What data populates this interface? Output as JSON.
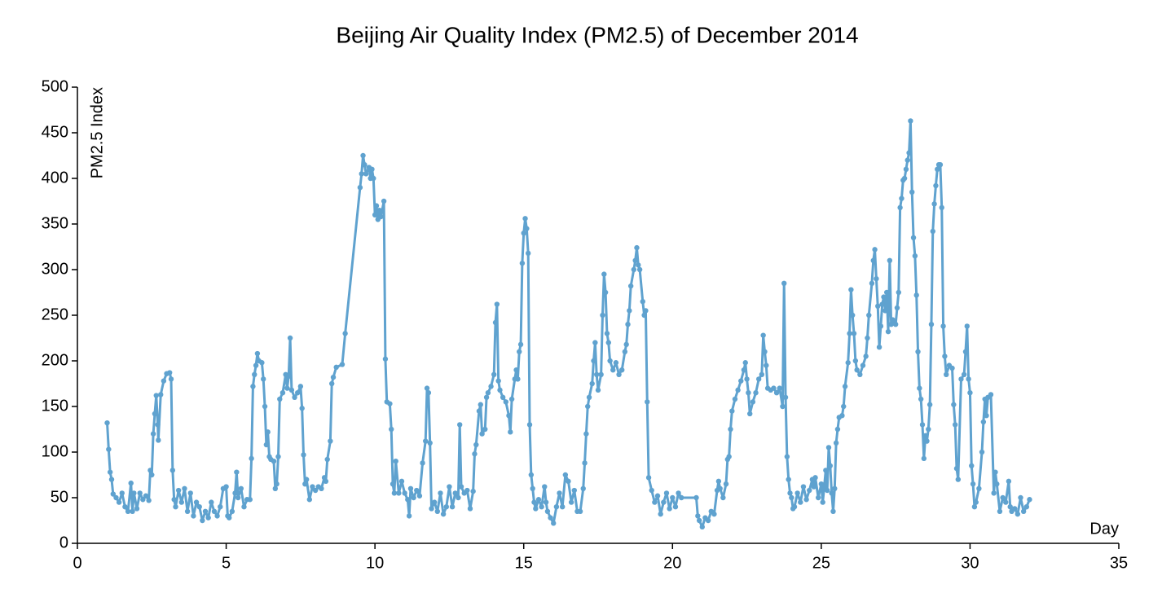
{
  "chart_data": {
    "type": "line",
    "title": "Beijing Air Quality Index (PM2.5) of December 2014",
    "x_label": "Day",
    "y_label": "PM2.5 Index",
    "color": "#5fa2cf",
    "xlim": [
      0,
      35
    ],
    "xticks": [
      0,
      5,
      10,
      15,
      20,
      25,
      30,
      35
    ],
    "ylim": [
      0,
      500
    ],
    "yticks": [
      0,
      50,
      100,
      150,
      200,
      250,
      300,
      350,
      400,
      450,
      500
    ],
    "grid": false,
    "x": [
      1.0,
      1.05,
      1.1,
      1.15,
      1.2,
      1.3,
      1.4,
      1.5,
      1.6,
      1.7,
      1.8,
      1.85,
      1.9,
      2.0,
      2.1,
      2.2,
      2.3,
      2.4,
      2.45,
      2.5,
      2.55,
      2.6,
      2.65,
      2.7,
      2.72,
      2.8,
      2.9,
      3.0,
      3.1,
      3.15,
      3.2,
      3.25,
      3.3,
      3.4,
      3.5,
      3.6,
      3.7,
      3.8,
      3.9,
      4.0,
      4.1,
      4.2,
      4.3,
      4.4,
      4.5,
      4.6,
      4.7,
      4.8,
      4.9,
      5.0,
      5.05,
      5.1,
      5.2,
      5.3,
      5.35,
      5.4,
      5.5,
      5.6,
      5.7,
      5.8,
      5.85,
      5.9,
      5.95,
      6.0,
      6.05,
      6.1,
      6.2,
      6.25,
      6.3,
      6.35,
      6.4,
      6.45,
      6.5,
      6.6,
      6.65,
      6.7,
      6.75,
      6.8,
      6.9,
      7.0,
      7.05,
      7.1,
      7.15,
      7.2,
      7.3,
      7.4,
      7.5,
      7.55,
      7.6,
      7.65,
      7.7,
      7.8,
      7.9,
      8.0,
      8.1,
      8.2,
      8.3,
      8.35,
      8.4,
      8.5,
      8.55,
      8.6,
      8.7,
      8.9,
      9.0,
      9.5,
      9.55,
      9.6,
      9.65,
      9.7,
      9.8,
      9.85,
      9.9,
      9.95,
      10.0,
      10.05,
      10.1,
      10.15,
      10.2,
      10.3,
      10.35,
      10.4,
      10.5,
      10.55,
      10.6,
      10.65,
      10.7,
      10.8,
      10.9,
      11.0,
      11.1,
      11.15,
      11.2,
      11.3,
      11.4,
      11.5,
      11.6,
      11.7,
      11.75,
      11.8,
      11.85,
      11.9,
      12.0,
      12.1,
      12.2,
      12.3,
      12.4,
      12.5,
      12.6,
      12.7,
      12.8,
      12.85,
      12.9,
      13.0,
      13.1,
      13.2,
      13.3,
      13.35,
      13.4,
      13.5,
      13.55,
      13.6,
      13.7,
      13.75,
      13.8,
      13.9,
      14.0,
      14.05,
      14.1,
      14.15,
      14.2,
      14.3,
      14.4,
      14.5,
      14.55,
      14.6,
      14.7,
      14.75,
      14.8,
      14.85,
      14.9,
      14.95,
      15.0,
      15.05,
      15.1,
      15.15,
      15.2,
      15.25,
      15.3,
      15.35,
      15.4,
      15.5,
      15.6,
      15.7,
      15.75,
      15.8,
      15.9,
      16.0,
      16.1,
      16.2,
      16.3,
      16.4,
      16.5,
      16.6,
      16.7,
      16.8,
      16.9,
      17.0,
      17.05,
      17.1,
      17.15,
      17.2,
      17.3,
      17.35,
      17.4,
      17.45,
      17.5,
      17.6,
      17.65,
      17.7,
      17.75,
      17.8,
      17.85,
      17.9,
      18.0,
      18.1,
      18.2,
      18.3,
      18.4,
      18.45,
      18.5,
      18.55,
      18.6,
      18.7,
      18.75,
      18.8,
      18.85,
      18.9,
      19.0,
      19.05,
      19.1,
      19.15,
      19.2,
      19.3,
      19.4,
      19.5,
      19.6,
      19.7,
      19.8,
      19.9,
      20.0,
      20.1,
      20.2,
      20.3,
      20.8,
      20.85,
      20.9,
      21.0,
      21.1,
      21.2,
      21.3,
      21.4,
      21.5,
      21.55,
      21.6,
      21.7,
      21.8,
      21.85,
      21.9,
      21.95,
      22.0,
      22.1,
      22.2,
      22.3,
      22.4,
      22.45,
      22.5,
      22.55,
      22.6,
      22.7,
      22.8,
      22.9,
      23.0,
      23.05,
      23.1,
      23.15,
      23.2,
      23.3,
      23.4,
      23.5,
      23.6,
      23.7,
      23.75,
      23.8,
      23.85,
      23.9,
      23.95,
      24.0,
      24.05,
      24.1,
      24.2,
      24.3,
      24.4,
      24.5,
      24.6,
      24.7,
      24.75,
      24.8,
      24.9,
      25.0,
      25.05,
      25.1,
      25.15,
      25.2,
      25.25,
      25.3,
      25.35,
      25.4,
      25.45,
      25.5,
      25.55,
      25.6,
      25.7,
      25.75,
      25.8,
      25.9,
      25.95,
      26.0,
      26.05,
      26.1,
      26.15,
      26.2,
      26.3,
      26.4,
      26.5,
      26.55,
      26.6,
      26.7,
      26.75,
      26.8,
      26.85,
      26.9,
      26.95,
      27.0,
      27.05,
      27.1,
      27.15,
      27.2,
      27.25,
      27.3,
      27.35,
      27.4,
      27.5,
      27.55,
      27.6,
      27.65,
      27.7,
      27.75,
      27.8,
      27.85,
      27.9,
      27.95,
      28.0,
      28.05,
      28.1,
      28.15,
      28.2,
      28.25,
      28.3,
      28.35,
      28.4,
      28.45,
      28.5,
      28.55,
      28.6,
      28.65,
      28.7,
      28.75,
      28.8,
      28.85,
      28.9,
      28.95,
      29.0,
      29.05,
      29.1,
      29.15,
      29.2,
      29.3,
      29.4,
      29.45,
      29.5,
      29.55,
      29.6,
      29.7,
      29.8,
      29.85,
      29.9,
      29.95,
      30.0,
      30.05,
      30.1,
      30.15,
      30.2,
      30.3,
      30.4,
      30.45,
      30.5,
      30.55,
      30.6,
      30.7,
      30.8,
      30.85,
      30.9,
      31.0,
      31.1,
      31.2,
      31.3,
      31.35,
      31.4,
      31.5,
      31.6,
      31.7,
      31.8,
      31.9,
      32.0
    ],
    "values": [
      132,
      103,
      78,
      70,
      54,
      50,
      45,
      55,
      40,
      35,
      66,
      35,
      55,
      38,
      55,
      48,
      52,
      47,
      80,
      75,
      120,
      142,
      162,
      130,
      113,
      163,
      178,
      186,
      187,
      180,
      80,
      48,
      40,
      58,
      45,
      60,
      35,
      55,
      30,
      45,
      40,
      25,
      35,
      28,
      45,
      35,
      30,
      40,
      60,
      62,
      30,
      28,
      35,
      55,
      78,
      50,
      60,
      40,
      48,
      48,
      93,
      172,
      185,
      195,
      208,
      200,
      198,
      180,
      150,
      108,
      122,
      95,
      92,
      90,
      60,
      65,
      95,
      158,
      165,
      185,
      170,
      183,
      225,
      168,
      160,
      165,
      172,
      148,
      97,
      65,
      70,
      48,
      62,
      58,
      62,
      60,
      72,
      68,
      92,
      112,
      175,
      182,
      193,
      196,
      230,
      390,
      405,
      425,
      415,
      405,
      412,
      400,
      410,
      400,
      360,
      370,
      355,
      365,
      358,
      375,
      202,
      155,
      153,
      125,
      65,
      55,
      90,
      55,
      68,
      55,
      48,
      30,
      60,
      50,
      58,
      52,
      88,
      112,
      170,
      165,
      110,
      38,
      45,
      35,
      55,
      32,
      40,
      62,
      40,
      55,
      50,
      130,
      62,
      55,
      58,
      38,
      57,
      98,
      108,
      145,
      152,
      120,
      125,
      160,
      165,
      172,
      185,
      242,
      262,
      178,
      168,
      160,
      155,
      140,
      122,
      158,
      180,
      190,
      180,
      210,
      218,
      307,
      340,
      356,
      345,
      318,
      130,
      75,
      60,
      45,
      38,
      48,
      40,
      62,
      45,
      35,
      28,
      22,
      40,
      55,
      40,
      75,
      68,
      45,
      58,
      35,
      35,
      60,
      88,
      120,
      150,
      160,
      175,
      200,
      220,
      185,
      168,
      185,
      250,
      295,
      275,
      230,
      220,
      200,
      190,
      198,
      185,
      190,
      210,
      218,
      240,
      255,
      282,
      300,
      310,
      324,
      305,
      300,
      265,
      250,
      255,
      155,
      72,
      58,
      45,
      52,
      32,
      45,
      55,
      38,
      50,
      40,
      55,
      50,
      50,
      30,
      25,
      18,
      28,
      25,
      35,
      32,
      58,
      68,
      60,
      50,
      65,
      92,
      95,
      125,
      145,
      158,
      168,
      178,
      190,
      198,
      180,
      165,
      142,
      155,
      165,
      180,
      185,
      228,
      210,
      195,
      170,
      168,
      170,
      165,
      170,
      150,
      285,
      160,
      95,
      70,
      55,
      50,
      38,
      40,
      55,
      45,
      62,
      48,
      58,
      70,
      62,
      72,
      50,
      65,
      45,
      62,
      80,
      58,
      105,
      85,
      55,
      35,
      60,
      110,
      125,
      138,
      140,
      150,
      172,
      198,
      230,
      278,
      250,
      230,
      200,
      190,
      185,
      195,
      205,
      225,
      250,
      285,
      310,
      322,
      290,
      260,
      215,
      238,
      262,
      270,
      255,
      275,
      232,
      310,
      240,
      245,
      240,
      258,
      275,
      368,
      378,
      398,
      400,
      410,
      420,
      428,
      463,
      385,
      335,
      315,
      272,
      210,
      170,
      158,
      130,
      93,
      118,
      112,
      125,
      152,
      240,
      342,
      372,
      392,
      410,
      415,
      415,
      368,
      238,
      205,
      185,
      195,
      192,
      152,
      130,
      82,
      70,
      180,
      185,
      210,
      238,
      180,
      165,
      85,
      65,
      40,
      45,
      60,
      100,
      133,
      158,
      140,
      160,
      163,
      55,
      78,
      65,
      35,
      50,
      45,
      68,
      40,
      35,
      38,
      32,
      50,
      35,
      40,
      48
    ]
  }
}
